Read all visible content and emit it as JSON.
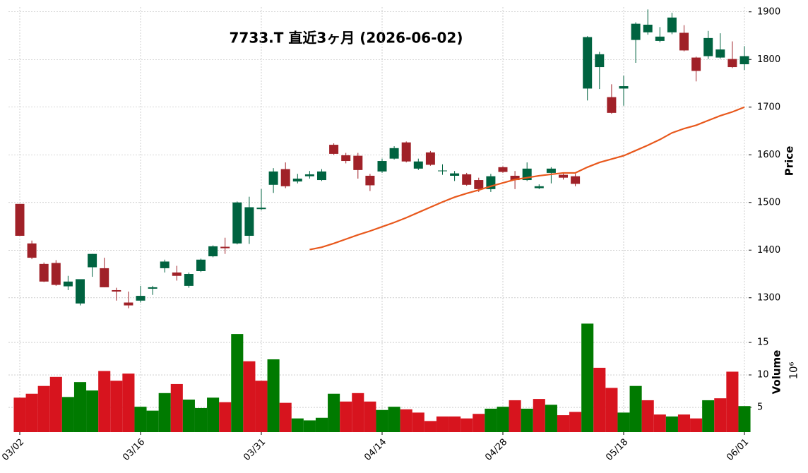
{
  "chart_data": {
    "type": "candlestick",
    "title": "7733.T  直近3ヶ月  (2026-06-02)",
    "categories": [
      "03/02",
      null,
      null,
      null,
      null,
      null,
      null,
      null,
      null,
      null,
      "03/16",
      null,
      null,
      null,
      null,
      null,
      null,
      null,
      null,
      null,
      "03/31",
      null,
      null,
      null,
      null,
      null,
      null,
      null,
      null,
      null,
      "04/14",
      null,
      null,
      null,
      null,
      null,
      null,
      null,
      null,
      null,
      "04/28",
      null,
      null,
      null,
      null,
      null,
      null,
      null,
      null,
      null,
      "05/18",
      null,
      null,
      null,
      null,
      null,
      null,
      null,
      null,
      null,
      "06/01"
    ],
    "open": [
      1497,
      1414,
      1371,
      1373,
      1324,
      1288,
      1364,
      1362,
      1316,
      1290,
      1294,
      1319,
      1362,
      1353,
      1325,
      1356,
      1387,
      1407,
      1414,
      1430,
      1486,
      1537,
      1570,
      1544,
      1555,
      1547,
      1621,
      1599,
      1598,
      1556,
      1565,
      1592,
      1626,
      1571,
      1605,
      1566,
      1556,
      1559,
      1547,
      1528,
      1574,
      1556,
      1547,
      1530,
      1562,
      1558,
      1555,
      1739,
      1784,
      1721,
      1739,
      1841,
      1857,
      1839,
      1857,
      1856,
      1804,
      1807,
      1804,
      1801,
      1790
    ],
    "high": [
      1497,
      1420,
      1374,
      1379,
      1346,
      1339,
      1392,
      1384,
      1321,
      1313,
      1325,
      1325,
      1380,
      1367,
      1353,
      1382,
      1410,
      1426,
      1502,
      1512,
      1528,
      1572,
      1584,
      1560,
      1566,
      1570,
      1624,
      1604,
      1604,
      1560,
      1592,
      1618,
      1628,
      1592,
      1608,
      1580,
      1566,
      1562,
      1552,
      1560,
      1576,
      1566,
      1584,
      1538,
      1574,
      1562,
      1560,
      1849,
      1816,
      1748,
      1766,
      1878,
      1905,
      1868,
      1898,
      1872,
      1806,
      1860,
      1855,
      1838,
      1828
    ],
    "low": [
      1430,
      1381,
      1333,
      1325,
      1316,
      1284,
      1344,
      1322,
      1294,
      1278,
      1290,
      1306,
      1353,
      1336,
      1321,
      1354,
      1385,
      1392,
      1412,
      1413,
      1484,
      1520,
      1530,
      1540,
      1550,
      1545,
      1600,
      1582,
      1550,
      1524,
      1562,
      1590,
      1584,
      1568,
      1577,
      1558,
      1545,
      1535,
      1522,
      1522,
      1562,
      1528,
      1545,
      1528,
      1540,
      1548,
      1534,
      1714,
      1738,
      1686,
      1703,
      1793,
      1852,
      1836,
      1853,
      1817,
      1754,
      1801,
      1802,
      1782,
      1778
    ],
    "close": [
      1430,
      1384,
      1334,
      1327,
      1334,
      1339,
      1392,
      1322,
      1313,
      1284,
      1304,
      1322,
      1376,
      1346,
      1350,
      1380,
      1408,
      1404,
      1500,
      1490,
      1489,
      1565,
      1534,
      1550,
      1559,
      1565,
      1602,
      1587,
      1568,
      1536,
      1587,
      1614,
      1586,
      1586,
      1579,
      1567,
      1561,
      1537,
      1528,
      1555,
      1564,
      1547,
      1571,
      1534,
      1571,
      1552,
      1539,
      1847,
      1811,
      1688,
      1744,
      1875,
      1873,
      1848,
      1888,
      1819,
      1776,
      1845,
      1821,
      1784,
      1807
    ],
    "up_color": "#006340",
    "down_color": "#a02128",
    "moving_average": {
      "color": "#e8581c",
      "values": [
        null,
        null,
        null,
        null,
        null,
        null,
        null,
        null,
        null,
        null,
        null,
        null,
        null,
        null,
        null,
        null,
        null,
        null,
        null,
        null,
        null,
        null,
        null,
        null,
        1401,
        1406,
        1414,
        1423,
        1432,
        1440,
        1449,
        1458,
        1468,
        1479,
        1490,
        1501,
        1511,
        1519,
        1526,
        1534,
        1541,
        1548,
        1552,
        1556,
        1559,
        1562,
        1562,
        1574,
        1584,
        1591,
        1598,
        1609,
        1620,
        1632,
        1646,
        1655,
        1662,
        1672,
        1682,
        1690,
        1700
      ]
    },
    "ylabel": "Price",
    "ylim": [
      1273,
      1910
    ],
    "yticks": [
      1300,
      1400,
      1500,
      1600,
      1700,
      1800,
      1900
    ],
    "grid": true,
    "volume": {
      "ylabel": "Volume",
      "scale_label": "10⁶",
      "ylim": [
        1.2,
        19.9
      ],
      "yticks": [
        5,
        10,
        15
      ],
      "values": [
        6.5,
        7.1,
        8.3,
        9.7,
        6.6,
        8.9,
        7.6,
        10.6,
        9.1,
        10.2,
        5.1,
        4.5,
        7.2,
        8.6,
        6.2,
        4.9,
        6.5,
        5.8,
        16.3,
        12.1,
        9.1,
        12.4,
        5.7,
        3.3,
        3.0,
        3.4,
        7.1,
        5.9,
        7.2,
        5.9,
        4.6,
        5.1,
        4.7,
        4.2,
        2.9,
        3.6,
        3.6,
        3.3,
        4.0,
        4.8,
        5.1,
        6.1,
        4.8,
        6.3,
        5.4,
        3.8,
        4.3,
        17.9,
        11.1,
        8.0,
        4.2,
        8.3,
        6.1,
        3.9,
        3.6,
        3.9,
        3.3,
        6.1,
        6.4,
        10.5,
        5.2
      ],
      "colors": [
        "#d7141e",
        "#d7141e",
        "#d7141e",
        "#d7141e",
        "#007a00",
        "#007a00",
        "#007a00",
        "#d7141e",
        "#d7141e",
        "#d7141e",
        "#007a00",
        "#007a00",
        "#007a00",
        "#d7141e",
        "#007a00",
        "#007a00",
        "#007a00",
        "#d7141e",
        "#007a00",
        "#d7141e",
        "#d7141e",
        "#007a00",
        "#d7141e",
        "#007a00",
        "#007a00",
        "#007a00",
        "#007a00",
        "#d7141e",
        "#d7141e",
        "#d7141e",
        "#007a00",
        "#007a00",
        "#d7141e",
        "#d7141e",
        "#d7141e",
        "#d7141e",
        "#d7141e",
        "#d7141e",
        "#d7141e",
        "#007a00",
        "#007a00",
        "#d7141e",
        "#007a00",
        "#d7141e",
        "#007a00",
        "#d7141e",
        "#d7141e",
        "#007a00",
        "#d7141e",
        "#d7141e",
        "#007a00",
        "#007a00",
        "#d7141e",
        "#d7141e",
        "#007a00",
        "#d7141e",
        "#d7141e",
        "#007a00",
        "#d7141e",
        "#d7141e",
        "#007a00"
      ]
    }
  }
}
